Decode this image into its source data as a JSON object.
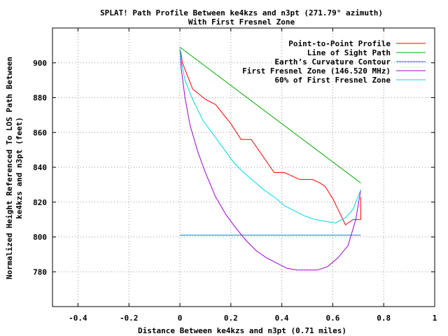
{
  "chart_data": {
    "type": "line",
    "title": "SPLAT! Path Profile Between ke4kzs and n3pt (271.79° azimuth)",
    "subtitle": "With First Fresnel Zone",
    "xlabel": "Distance Between ke4kzs and n3pt (0.71 miles)",
    "ylabel_line1": "Normalized Height Referenced To LOS Path Between",
    "ylabel_line2": "ke4kzs and n3pt (feet)",
    "xlim": [
      -0.5,
      1.0
    ],
    "ylim": [
      760,
      920
    ],
    "xticks": [
      -0.4,
      -0.2,
      0,
      0.2,
      0.4,
      0.6,
      0.8,
      1
    ],
    "xtick_labels": [
      "-0.4",
      "-0.2",
      "0",
      "0.2",
      "0.4",
      "0.6",
      "0.8",
      "1"
    ],
    "yticks": [
      780,
      800,
      820,
      840,
      860,
      880,
      900
    ],
    "ytick_labels": [
      "780",
      "800",
      "820",
      "840",
      "860",
      "880",
      "900"
    ],
    "grid": true,
    "legend_position": "top-right",
    "series": [
      {
        "name": "Point-to-Point Profile",
        "color": "#ff0000",
        "x": [
          0,
          0.005,
          0.01,
          0.05,
          0.1,
          0.14,
          0.2,
          0.24,
          0.28,
          0.37,
          0.41,
          0.47,
          0.52,
          0.55,
          0.57,
          0.6,
          0.63,
          0.65,
          0.68,
          0.71,
          0.71
        ],
        "y": [
          908,
          905,
          900,
          885,
          879,
          876,
          865,
          856,
          856,
          837,
          837,
          833,
          833,
          831,
          829,
          822,
          813,
          807,
          810,
          810,
          823
        ]
      },
      {
        "name": "Line of Sight Path",
        "color": "#00aa00",
        "x": [
          0,
          0.71
        ],
        "y": [
          909,
          831
        ]
      },
      {
        "name": "Earth’s Curvature Contour",
        "color": "#0080c0",
        "x": [
          0,
          0.71
        ],
        "y": [
          801,
          801
        ]
      },
      {
        "name": "First Fresnel Zone (146.520 MHz)",
        "color": "#a000cc",
        "x": [
          0,
          0.005,
          0.02,
          0.04,
          0.07,
          0.1,
          0.14,
          0.18,
          0.22,
          0.26,
          0.3,
          0.34,
          0.38,
          0.42,
          0.46,
          0.5,
          0.54,
          0.58,
          0.62,
          0.66,
          0.69,
          0.71
        ],
        "y": [
          908,
          897,
          880,
          864,
          849,
          837,
          823,
          813,
          805,
          798,
          792,
          788,
          785,
          782,
          781,
          781,
          781,
          783,
          788,
          795,
          810,
          827
        ]
      },
      {
        "name": "60% of First Fresnel Zone",
        "color": "#00d8e8",
        "x": [
          0,
          0.005,
          0.02,
          0.05,
          0.09,
          0.13,
          0.17,
          0.21,
          0.25,
          0.29,
          0.33,
          0.37,
          0.41,
          0.45,
          0.49,
          0.53,
          0.57,
          0.61,
          0.65,
          0.68,
          0.71
        ],
        "y": [
          908,
          901,
          890,
          879,
          867,
          859,
          851,
          843,
          837,
          832,
          827,
          823,
          818,
          815,
          812,
          810,
          809,
          808,
          811,
          816,
          827
        ]
      }
    ]
  }
}
